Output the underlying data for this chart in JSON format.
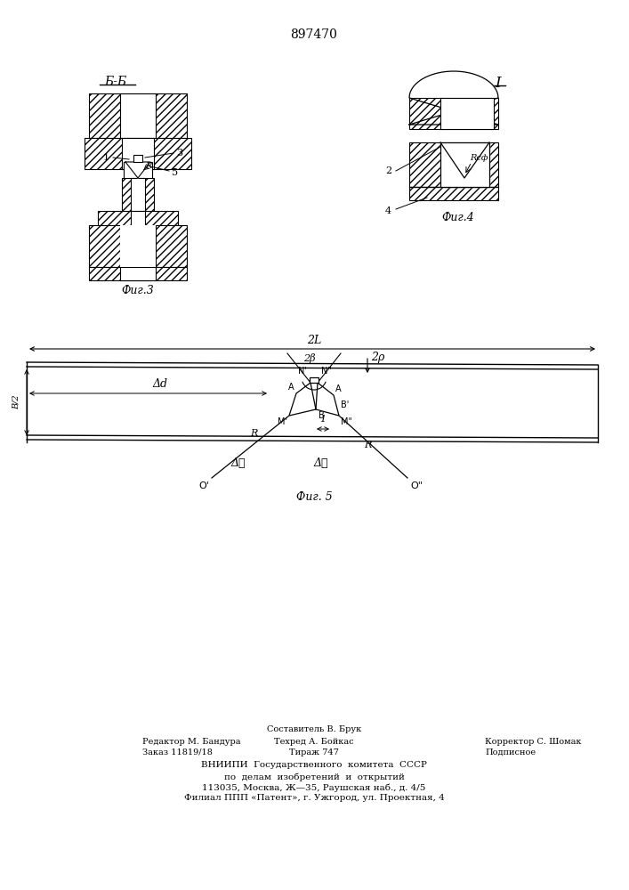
{
  "patent_number": "897470",
  "bg_color": "#ffffff",
  "line_color": "#000000",
  "fig3_label": "Фиг.3",
  "fig4_label": "Фиг.4",
  "fig5_label": "Фиг. 5",
  "section_label": "Б-Б",
  "view_label": "I",
  "footer_line1": "Составитель В. Брук",
  "footer_line2a": "Редактор М. Бандура",
  "footer_line2b": "Техред А. Бойкас",
  "footer_line2c": "Корректор С. Шомак",
  "footer_line3a": "Заказ 11819/18",
  "footer_line3b": "Тираж 747",
  "footer_line3c": "Подписное",
  "footer_line4": "ВНИИПИ  Государственного  комитета  СССР",
  "footer_line5": "по  делам  изобретений  и  открытий",
  "footer_line6": "113035, Москва, Ж—35, Раушская наб., д. 4/5",
  "footer_line7": "Филиал ППП «Патент», г. Ужгород, ул. Проектная, 4"
}
